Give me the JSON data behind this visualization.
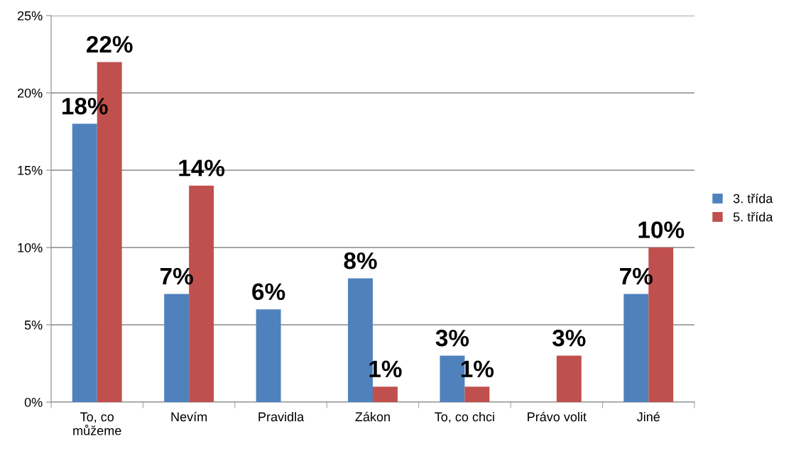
{
  "chart_data": {
    "type": "bar",
    "categories": [
      "To, co můžeme",
      "Nevím",
      "Pravidla",
      "Zákon",
      "To, co chci",
      "Právo volit",
      "Jiné"
    ],
    "series": [
      {
        "name": "3. třída",
        "color": "#4f81bd",
        "values": [
          18,
          7,
          6,
          8,
          3,
          null,
          7
        ],
        "value_labels": [
          "18%",
          "7%",
          "6%",
          "8%",
          "3%",
          null,
          "7%"
        ]
      },
      {
        "name": "5. třída",
        "color": "#c0504d",
        "values": [
          22,
          14,
          null,
          1,
          1,
          3,
          10
        ],
        "value_labels": [
          "22%",
          "14%",
          null,
          "1%",
          "1%",
          "3%",
          "10%"
        ]
      }
    ],
    "ylim": [
      0,
      25
    ],
    "yticks": [
      {
        "value": 0,
        "label": "0%"
      },
      {
        "value": 5,
        "label": "5%"
      },
      {
        "value": 10,
        "label": "10%"
      },
      {
        "value": 15,
        "label": "15%"
      },
      {
        "value": 20,
        "label": "20%"
      },
      {
        "value": 25,
        "label": "25%"
      }
    ],
    "grid": "y",
    "legend": "right"
  }
}
